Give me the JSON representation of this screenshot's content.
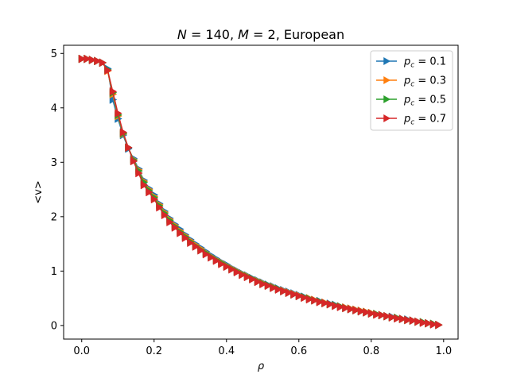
{
  "chart_data": {
    "type": "line",
    "title": "N = 140, M = 2, European",
    "xlabel": "ρ",
    "ylabel": "<v>",
    "xlim": [
      -0.05,
      1.04
    ],
    "ylim": [
      -0.25,
      5.15
    ],
    "xticks": [
      "0.0",
      "0.2",
      "0.4",
      "0.6",
      "0.8",
      "1.0"
    ],
    "yticks": [
      "0",
      "1",
      "2",
      "3",
      "4",
      "5"
    ],
    "grid": false,
    "legend_position": "top-right",
    "x": [
      0.0,
      0.0143,
      0.0286,
      0.0429,
      0.0571,
      0.0714,
      0.0857,
      0.1,
      0.1143,
      0.1286,
      0.1429,
      0.1571,
      0.1714,
      0.1857,
      0.2,
      0.2143,
      0.2286,
      0.2429,
      0.2571,
      0.2714,
      0.2857,
      0.3,
      0.3143,
      0.3286,
      0.3429,
      0.3571,
      0.3714,
      0.3857,
      0.4,
      0.4143,
      0.4286,
      0.4429,
      0.4571,
      0.4714,
      0.4857,
      0.5,
      0.5143,
      0.5286,
      0.5429,
      0.5571,
      0.5714,
      0.5857,
      0.6,
      0.6143,
      0.6286,
      0.6429,
      0.6571,
      0.6714,
      0.6857,
      0.7,
      0.7143,
      0.7286,
      0.7429,
      0.7571,
      0.7714,
      0.7857,
      0.8,
      0.8143,
      0.8286,
      0.8429,
      0.8571,
      0.8714,
      0.8857,
      0.9,
      0.9143,
      0.9286,
      0.9429,
      0.9571,
      0.9714,
      0.9857
    ],
    "series": [
      {
        "name": "p_c = 0.1",
        "color": "#1f77b4",
        "values": [
          4.9,
          4.9,
          4.88,
          4.86,
          4.83,
          4.72,
          4.15,
          3.8,
          3.5,
          3.25,
          3.07,
          2.88,
          2.67,
          2.52,
          2.4,
          2.24,
          2.1,
          1.97,
          1.86,
          1.77,
          1.67,
          1.58,
          1.5,
          1.43,
          1.36,
          1.29,
          1.23,
          1.17,
          1.12,
          1.06,
          1.01,
          0.96,
          0.92,
          0.87,
          0.83,
          0.79,
          0.75,
          0.72,
          0.68,
          0.65,
          0.62,
          0.59,
          0.56,
          0.53,
          0.5,
          0.47,
          0.45,
          0.42,
          0.4,
          0.38,
          0.35,
          0.33,
          0.31,
          0.29,
          0.27,
          0.25,
          0.23,
          0.21,
          0.19,
          0.17,
          0.16,
          0.14,
          0.12,
          0.11,
          0.09,
          0.07,
          0.06,
          0.04,
          0.03,
          0.01
        ]
      },
      {
        "name": "p_c = 0.3",
        "color": "#ff7f0e",
        "values": [
          4.9,
          4.9,
          4.88,
          4.86,
          4.83,
          4.68,
          4.25,
          3.85,
          3.52,
          3.27,
          3.05,
          2.86,
          2.65,
          2.5,
          2.37,
          2.22,
          2.08,
          1.95,
          1.84,
          1.74,
          1.65,
          1.56,
          1.48,
          1.41,
          1.34,
          1.27,
          1.21,
          1.16,
          1.1,
          1.05,
          1.0,
          0.95,
          0.91,
          0.86,
          0.82,
          0.78,
          0.74,
          0.71,
          0.67,
          0.64,
          0.61,
          0.58,
          0.55,
          0.52,
          0.5,
          0.47,
          0.44,
          0.42,
          0.39,
          0.37,
          0.35,
          0.33,
          0.31,
          0.29,
          0.27,
          0.25,
          0.23,
          0.21,
          0.19,
          0.17,
          0.15,
          0.14,
          0.12,
          0.1,
          0.09,
          0.07,
          0.06,
          0.04,
          0.03,
          0.01
        ]
      },
      {
        "name": "p_c = 0.5",
        "color": "#2ca02c",
        "values": [
          4.9,
          4.9,
          4.88,
          4.86,
          4.83,
          4.7,
          4.28,
          3.87,
          3.53,
          3.27,
          3.04,
          2.84,
          2.63,
          2.48,
          2.35,
          2.2,
          2.06,
          1.93,
          1.82,
          1.72,
          1.63,
          1.54,
          1.46,
          1.39,
          1.33,
          1.26,
          1.2,
          1.15,
          1.09,
          1.04,
          0.99,
          0.94,
          0.9,
          0.86,
          0.81,
          0.77,
          0.74,
          0.7,
          0.67,
          0.63,
          0.6,
          0.57,
          0.54,
          0.52,
          0.49,
          0.46,
          0.44,
          0.41,
          0.39,
          0.37,
          0.35,
          0.32,
          0.3,
          0.28,
          0.26,
          0.24,
          0.22,
          0.21,
          0.19,
          0.17,
          0.15,
          0.14,
          0.12,
          0.1,
          0.09,
          0.07,
          0.06,
          0.04,
          0.03,
          0.01
        ]
      },
      {
        "name": "p_c = 0.7",
        "color": "#d62728",
        "values": [
          4.9,
          4.9,
          4.88,
          4.86,
          4.83,
          4.69,
          4.3,
          3.9,
          3.55,
          3.27,
          3.02,
          2.8,
          2.58,
          2.45,
          2.32,
          2.17,
          2.03,
          1.9,
          1.8,
          1.7,
          1.61,
          1.52,
          1.45,
          1.38,
          1.31,
          1.25,
          1.19,
          1.13,
          1.08,
          1.03,
          0.98,
          0.93,
          0.89,
          0.85,
          0.8,
          0.76,
          0.73,
          0.69,
          0.66,
          0.63,
          0.6,
          0.57,
          0.54,
          0.51,
          0.48,
          0.46,
          0.43,
          0.41,
          0.39,
          0.36,
          0.34,
          0.32,
          0.3,
          0.28,
          0.26,
          0.24,
          0.22,
          0.2,
          0.19,
          0.17,
          0.15,
          0.13,
          0.12,
          0.1,
          0.09,
          0.07,
          0.05,
          0.04,
          0.02,
          0.01
        ]
      }
    ]
  }
}
